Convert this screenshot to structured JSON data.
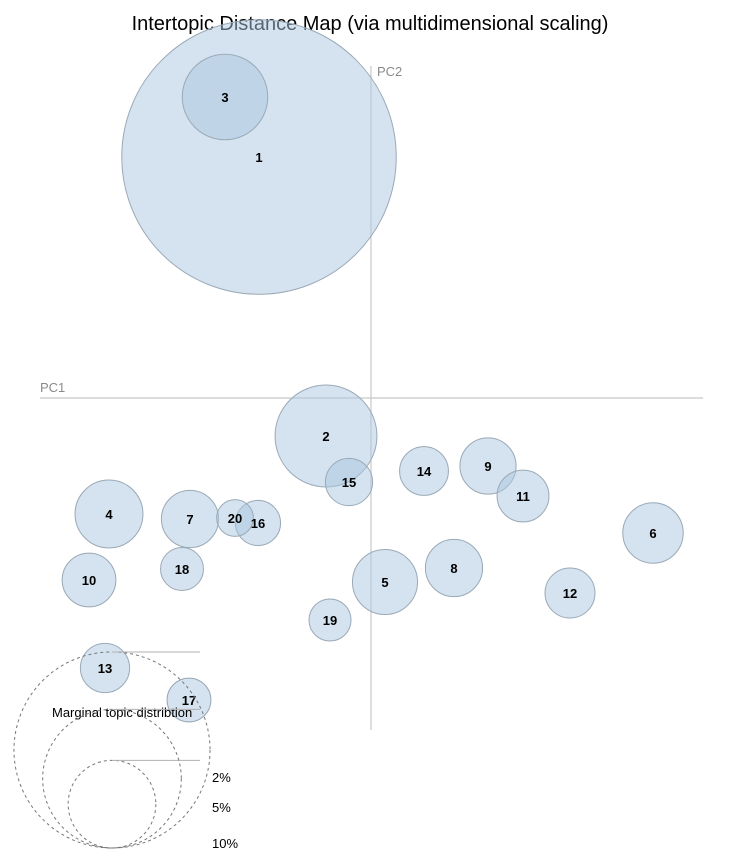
{
  "chart_data": {
    "type": "scatter",
    "title": "Intertopic Distance Map (via multidimensional scaling)",
    "xlabel": "PC1",
    "ylabel": "PC2",
    "topics": [
      {
        "label": "1",
        "x": -0.112,
        "y": 0.241,
        "share": 0.196
      },
      {
        "label": "2",
        "x": -0.045,
        "y": -0.038,
        "share": 0.027
      },
      {
        "label": "3",
        "x": -0.146,
        "y": 0.301,
        "share": 0.019
      },
      {
        "label": "4",
        "x": -0.262,
        "y": -0.116,
        "share": 0.012
      },
      {
        "label": "5",
        "x": 0.014,
        "y": -0.184,
        "share": 0.011
      },
      {
        "label": "6",
        "x": 0.282,
        "y": -0.135,
        "share": 0.0095
      },
      {
        "label": "7",
        "x": -0.181,
        "y": -0.121,
        "share": 0.0085
      },
      {
        "label": "8",
        "x": 0.083,
        "y": -0.17,
        "share": 0.0085
      },
      {
        "label": "9",
        "x": 0.117,
        "y": -0.068,
        "share": 0.0082
      },
      {
        "label": "10",
        "x": -0.282,
        "y": -0.182,
        "share": 0.0075
      },
      {
        "label": "11",
        "x": 0.152,
        "y": -0.098,
        "share": 0.007
      },
      {
        "label": "12",
        "x": 0.199,
        "y": -0.195,
        "share": 0.0065
      },
      {
        "label": "13",
        "x": -0.266,
        "y": -0.27,
        "share": 0.0063
      },
      {
        "label": "14",
        "x": 0.053,
        "y": -0.073,
        "share": 0.0062
      },
      {
        "label": "15",
        "x": -0.022,
        "y": -0.084,
        "share": 0.0058
      },
      {
        "label": "16",
        "x": -0.113,
        "y": -0.125,
        "share": 0.0053
      },
      {
        "label": "17",
        "x": -0.182,
        "y": -0.302,
        "share": 0.005
      },
      {
        "label": "18",
        "x": -0.189,
        "y": -0.171,
        "share": 0.0048
      },
      {
        "label": "19",
        "x": -0.041,
        "y": -0.222,
        "share": 0.0046
      },
      {
        "label": "20",
        "x": -0.136,
        "y": -0.12,
        "share": 0.0035
      }
    ],
    "size_legend": {
      "title": "Marginal topic distribtion",
      "entries": [
        {
          "label": "2%",
          "share": 0.02
        },
        {
          "label": "5%",
          "share": 0.05
        },
        {
          "label": "10%",
          "share": 0.1
        }
      ]
    }
  }
}
